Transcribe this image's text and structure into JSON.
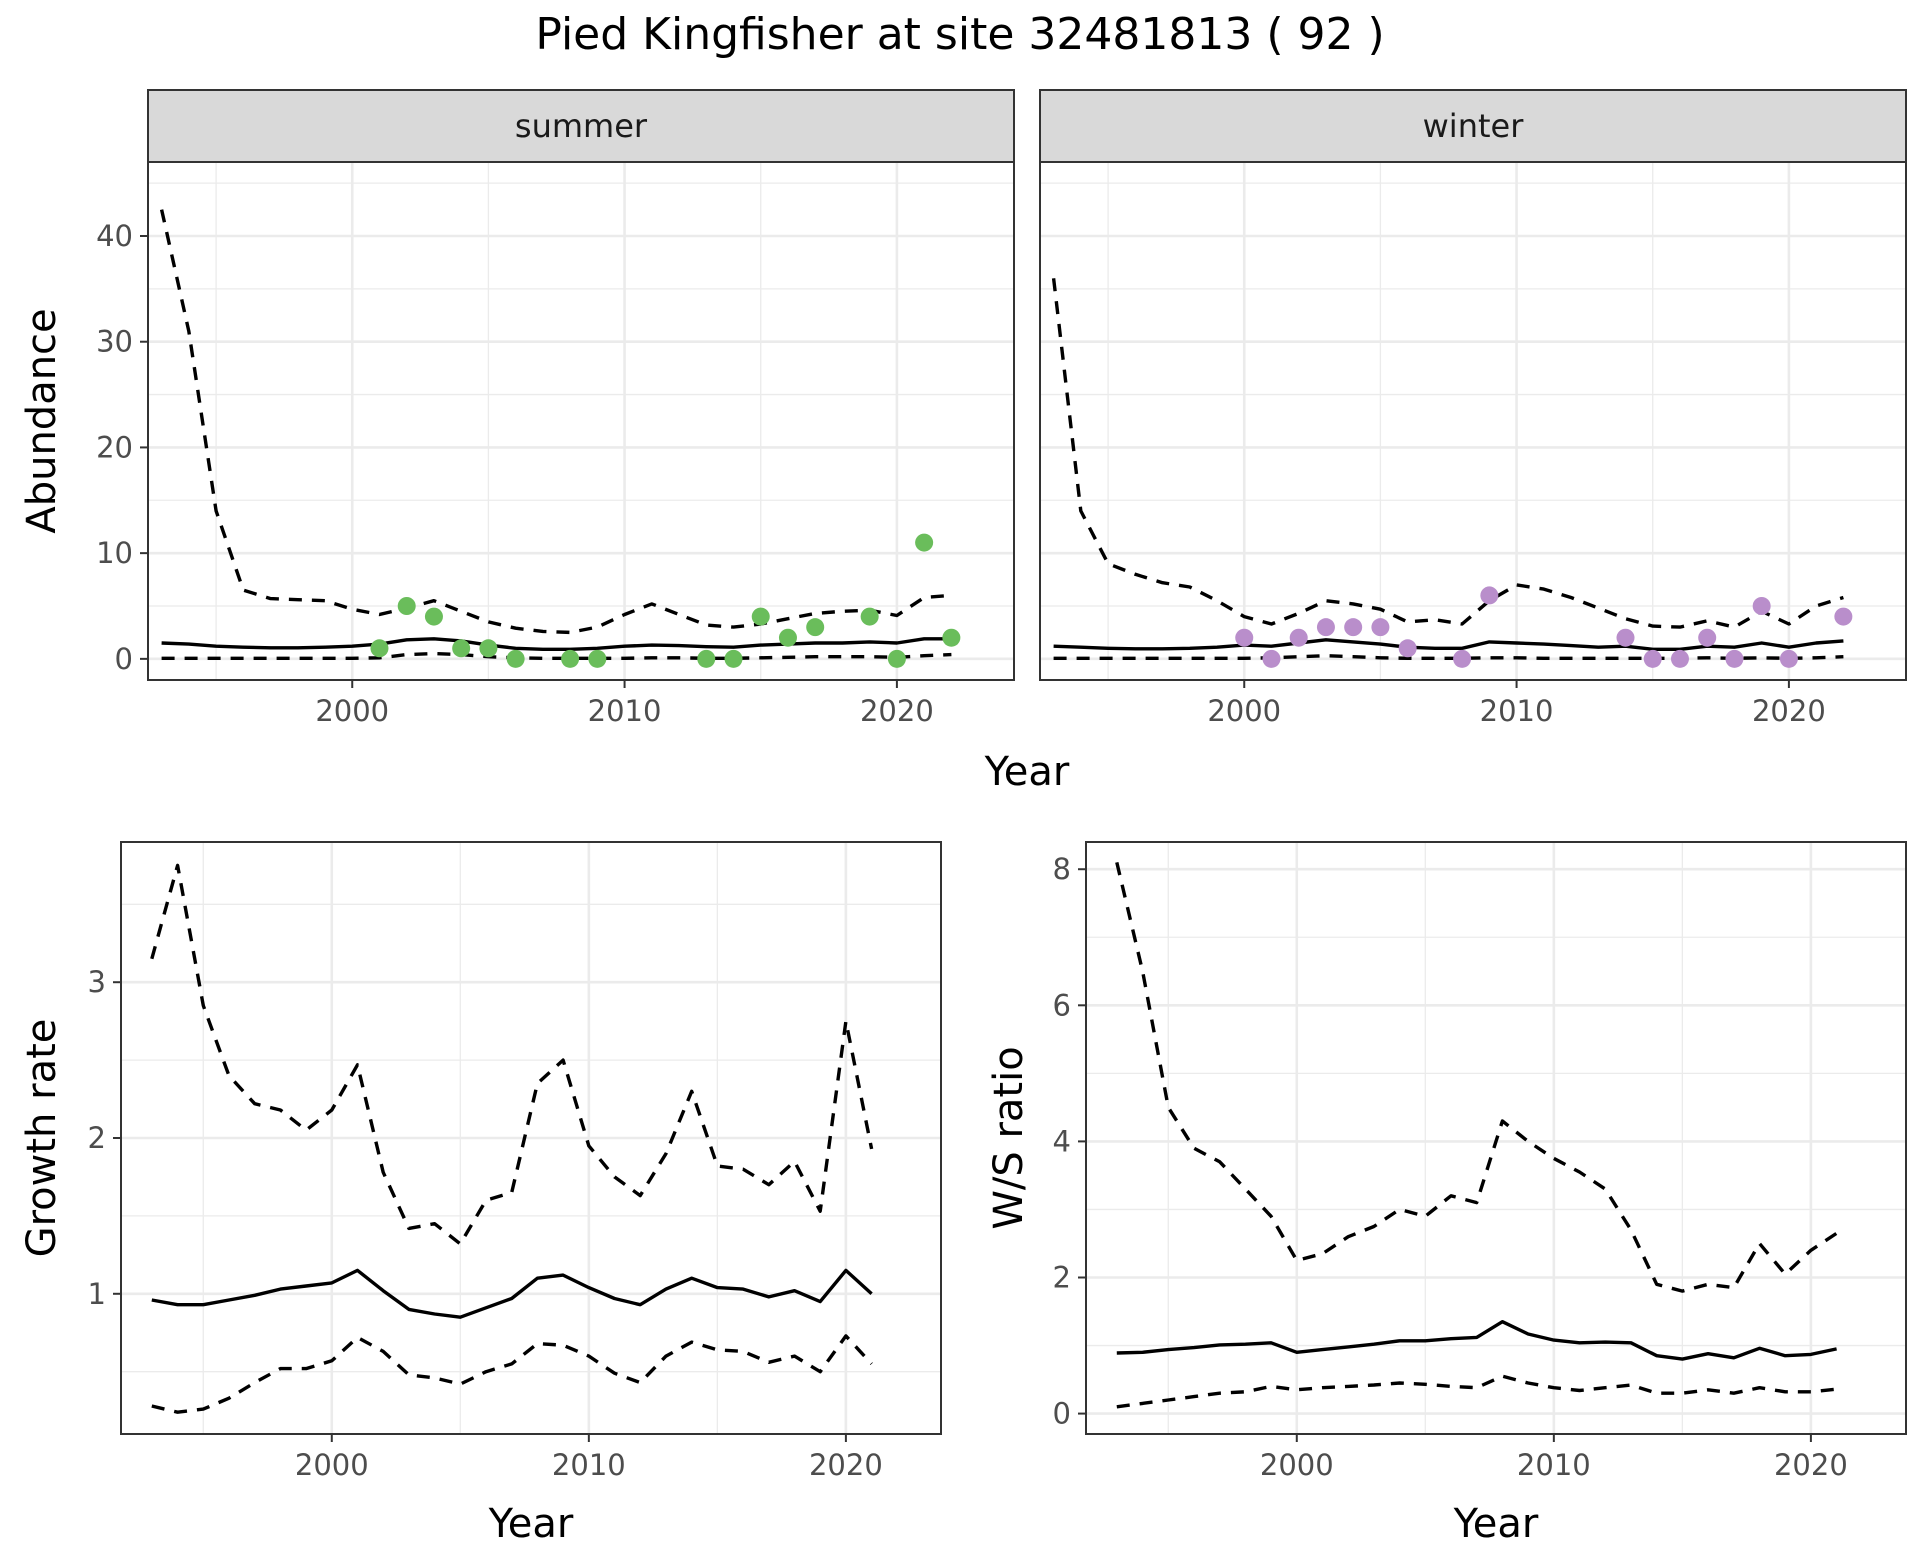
{
  "title": "Pied Kingfisher at site 32481813 ( 92 )",
  "colors": {
    "summer_points": "#6abd5b",
    "winter_points": "#b98ecb",
    "line": "#000000",
    "strip_fill": "#d9d9d9",
    "grid": "#ebebeb"
  },
  "chart_data": [
    {
      "id": "abundance-summer",
      "type": "scatter",
      "facet_label": "summer",
      "xlabel": "Year",
      "ylabel": "Abundance",
      "xlim": [
        1992.5,
        2024.3
      ],
      "ylim": [
        -2,
        47
      ],
      "x_ticks": [
        2000,
        2010,
        2020
      ],
      "y_ticks": [
        0,
        10,
        20,
        30,
        40
      ],
      "grid": true,
      "point_color": "#6abd5b",
      "points": {
        "x": [
          2001,
          2002,
          2003,
          2004,
          2005,
          2006,
          2008,
          2009,
          2013,
          2014,
          2015,
          2016,
          2017,
          2019,
          2020,
          2021,
          2022
        ],
        "y": [
          1,
          5,
          4,
          1,
          1,
          0,
          0,
          0,
          0,
          0,
          4,
          2,
          3,
          4,
          0,
          11,
          2
        ]
      },
      "series": [
        {
          "style": "solid",
          "x": [
            1993,
            1994,
            1995,
            1996,
            1997,
            1998,
            1999,
            2000,
            2001,
            2002,
            2003,
            2004,
            2005,
            2006,
            2007,
            2008,
            2009,
            2010,
            2011,
            2012,
            2013,
            2014,
            2015,
            2016,
            2017,
            2018,
            2019,
            2020,
            2021,
            2022
          ],
          "y": [
            1.5,
            1.4,
            1.2,
            1.1,
            1.05,
            1.05,
            1.1,
            1.2,
            1.4,
            1.8,
            1.9,
            1.7,
            1.3,
            1.0,
            0.9,
            0.9,
            1.0,
            1.2,
            1.3,
            1.25,
            1.15,
            1.1,
            1.3,
            1.4,
            1.5,
            1.5,
            1.6,
            1.5,
            1.9,
            1.9
          ]
        },
        {
          "style": "dashed",
          "x": [
            1993,
            1994,
            1995,
            1996,
            1997,
            1998,
            1999,
            2000,
            2001,
            2002,
            2003,
            2004,
            2005,
            2006,
            2007,
            2008,
            2009,
            2010,
            2011,
            2012,
            2013,
            2014,
            2015,
            2016,
            2017,
            2018,
            2019,
            2020,
            2021,
            2022
          ],
          "y": [
            42.5,
            31,
            14,
            6.5,
            5.7,
            5.6,
            5.5,
            4.7,
            4.2,
            4.8,
            5.5,
            4.5,
            3.5,
            2.9,
            2.6,
            2.5,
            3.0,
            4.2,
            5.2,
            4.2,
            3.2,
            3.0,
            3.3,
            3.8,
            4.3,
            4.5,
            4.6,
            4.1,
            5.8,
            6.0
          ]
        },
        {
          "style": "dashed",
          "x": [
            1993,
            1994,
            1995,
            1996,
            1997,
            1998,
            1999,
            2000,
            2001,
            2002,
            2003,
            2004,
            2005,
            2006,
            2007,
            2008,
            2009,
            2010,
            2011,
            2012,
            2013,
            2014,
            2015,
            2016,
            2017,
            2018,
            2019,
            2020,
            2021,
            2022
          ],
          "y": [
            0.05,
            0.05,
            0.05,
            0.05,
            0.05,
            0.05,
            0.05,
            0.05,
            0.1,
            0.4,
            0.5,
            0.4,
            0.2,
            0.1,
            0.05,
            0.05,
            0.05,
            0.05,
            0.1,
            0.1,
            0.05,
            0.05,
            0.1,
            0.15,
            0.2,
            0.2,
            0.2,
            0.15,
            0.3,
            0.4
          ]
        }
      ]
    },
    {
      "id": "abundance-winter",
      "type": "scatter",
      "facet_label": "winter",
      "xlabel": "Year",
      "ylabel": "Abundance",
      "xlim": [
        1992.5,
        2024.3
      ],
      "ylim": [
        -2,
        47
      ],
      "x_ticks": [
        2000,
        2010,
        2020
      ],
      "y_ticks": [
        0,
        10,
        20,
        30,
        40
      ],
      "grid": true,
      "point_color": "#b98ecb",
      "points": {
        "x": [
          2000,
          2001,
          2002,
          2003,
          2004,
          2005,
          2006,
          2008,
          2009,
          2014,
          2015,
          2016,
          2017,
          2018,
          2019,
          2020,
          2022
        ],
        "y": [
          2,
          0,
          2,
          3,
          3,
          3,
          1,
          0,
          6,
          2,
          0,
          0,
          2,
          0,
          5,
          0,
          4
        ]
      },
      "series": [
        {
          "style": "solid",
          "x": [
            1993,
            1994,
            1995,
            1996,
            1997,
            1998,
            1999,
            2000,
            2001,
            2002,
            2003,
            2004,
            2005,
            2006,
            2007,
            2008,
            2009,
            2010,
            2011,
            2012,
            2013,
            2014,
            2015,
            2016,
            2017,
            2018,
            2019,
            2020,
            2021,
            2022
          ],
          "y": [
            1.2,
            1.1,
            1.0,
            0.95,
            0.95,
            1.0,
            1.1,
            1.3,
            1.2,
            1.5,
            1.8,
            1.6,
            1.4,
            1.1,
            1.0,
            1.0,
            1.6,
            1.5,
            1.4,
            1.25,
            1.1,
            1.2,
            0.9,
            0.9,
            1.2,
            1.1,
            1.5,
            1.1,
            1.5,
            1.7
          ]
        },
        {
          "style": "dashed",
          "x": [
            1993,
            1994,
            1995,
            1996,
            1997,
            1998,
            1999,
            2000,
            2001,
            2002,
            2003,
            2004,
            2005,
            2006,
            2007,
            2008,
            2009,
            2010,
            2011,
            2012,
            2013,
            2014,
            2015,
            2016,
            2017,
            2018,
            2019,
            2020,
            2021,
            2022
          ],
          "y": [
            36,
            14,
            9,
            8,
            7.2,
            6.8,
            5.5,
            4.0,
            3.3,
            4.3,
            5.5,
            5.2,
            4.7,
            3.5,
            3.7,
            3.3,
            5.5,
            7.0,
            6.6,
            5.8,
            4.8,
            3.8,
            3.1,
            3.0,
            3.6,
            3.0,
            4.5,
            3.3,
            5.0,
            5.8
          ]
        },
        {
          "style": "dashed",
          "x": [
            1993,
            1994,
            1995,
            1996,
            1997,
            1998,
            1999,
            2000,
            2001,
            2002,
            2003,
            2004,
            2005,
            2006,
            2007,
            2008,
            2009,
            2010,
            2011,
            2012,
            2013,
            2014,
            2015,
            2016,
            2017,
            2018,
            2019,
            2020,
            2021,
            2022
          ],
          "y": [
            0.05,
            0.05,
            0.05,
            0.05,
            0.05,
            0.05,
            0.05,
            0.05,
            0.1,
            0.2,
            0.3,
            0.2,
            0.1,
            0.05,
            0.05,
            0.05,
            0.1,
            0.1,
            0.05,
            0.05,
            0.05,
            0.05,
            0.05,
            0.05,
            0.1,
            0.05,
            0.1,
            0.05,
            0.1,
            0.2
          ]
        }
      ]
    },
    {
      "id": "growth-rate",
      "type": "line",
      "xlabel": "Year",
      "ylabel": "Growth rate",
      "xlim": [
        1991.8,
        2023.7
      ],
      "ylim": [
        0.1,
        3.9
      ],
      "x_ticks": [
        2000,
        2010,
        2020
      ],
      "y_ticks": [
        1,
        2,
        3
      ],
      "grid": true,
      "series": [
        {
          "style": "solid",
          "x": [
            1993,
            1994,
            1995,
            1996,
            1997,
            1998,
            1999,
            2000,
            2001,
            2002,
            2003,
            2004,
            2005,
            2006,
            2007,
            2008,
            2009,
            2010,
            2011,
            2012,
            2013,
            2014,
            2015,
            2016,
            2017,
            2018,
            2019,
            2020,
            2021
          ],
          "y": [
            0.96,
            0.93,
            0.93,
            0.96,
            0.99,
            1.03,
            1.05,
            1.07,
            1.15,
            1.02,
            0.9,
            0.87,
            0.85,
            0.91,
            0.97,
            1.1,
            1.12,
            1.04,
            0.97,
            0.93,
            1.03,
            1.1,
            1.04,
            1.03,
            0.98,
            1.02,
            0.95,
            1.15,
            1.0
          ]
        },
        {
          "style": "dashed",
          "x": [
            1993,
            1994,
            1995,
            1996,
            1997,
            1998,
            1999,
            2000,
            2001,
            2002,
            2003,
            2004,
            2005,
            2006,
            2007,
            2008,
            2009,
            2010,
            2011,
            2012,
            2013,
            2014,
            2015,
            2016,
            2017,
            2018,
            2019,
            2020,
            2021
          ],
          "y": [
            3.15,
            3.75,
            2.85,
            2.4,
            2.22,
            2.18,
            2.05,
            2.18,
            2.47,
            1.78,
            1.42,
            1.45,
            1.32,
            1.6,
            1.65,
            2.35,
            2.5,
            1.95,
            1.75,
            1.63,
            1.9,
            2.3,
            1.82,
            1.8,
            1.7,
            1.85,
            1.53,
            2.75,
            1.93
          ]
        },
        {
          "style": "dashed",
          "x": [
            1993,
            1994,
            1995,
            1996,
            1997,
            1998,
            1999,
            2000,
            2001,
            2002,
            2003,
            2004,
            2005,
            2006,
            2007,
            2008,
            2009,
            2010,
            2011,
            2012,
            2013,
            2014,
            2015,
            2016,
            2017,
            2018,
            2019,
            2020,
            2021
          ],
          "y": [
            0.28,
            0.24,
            0.26,
            0.33,
            0.43,
            0.52,
            0.52,
            0.57,
            0.72,
            0.63,
            0.48,
            0.46,
            0.42,
            0.5,
            0.55,
            0.68,
            0.67,
            0.6,
            0.49,
            0.43,
            0.6,
            0.69,
            0.64,
            0.63,
            0.56,
            0.6,
            0.5,
            0.73,
            0.55
          ]
        }
      ]
    },
    {
      "id": "ws-ratio",
      "type": "line",
      "xlabel": "Year",
      "ylabel": "W/S ratio",
      "xlim": [
        1991.8,
        2023.7
      ],
      "ylim": [
        -0.3,
        8.4
      ],
      "x_ticks": [
        2000,
        2010,
        2020
      ],
      "y_ticks": [
        0,
        2,
        4,
        6,
        8
      ],
      "grid": true,
      "series": [
        {
          "style": "solid",
          "x": [
            1993,
            1994,
            1995,
            1996,
            1997,
            1998,
            1999,
            2000,
            2001,
            2002,
            2003,
            2004,
            2005,
            2006,
            2007,
            2008,
            2009,
            2010,
            2011,
            2012,
            2013,
            2014,
            2015,
            2016,
            2017,
            2018,
            2019,
            2020,
            2021
          ],
          "y": [
            0.89,
            0.9,
            0.94,
            0.97,
            1.01,
            1.02,
            1.04,
            0.9,
            0.94,
            0.98,
            1.02,
            1.07,
            1.07,
            1.1,
            1.12,
            1.35,
            1.17,
            1.08,
            1.04,
            1.05,
            1.04,
            0.85,
            0.8,
            0.88,
            0.82,
            0.96,
            0.85,
            0.87,
            0.95
          ]
        },
        {
          "style": "dashed",
          "x": [
            1993,
            1994,
            1995,
            1996,
            1997,
            1998,
            1999,
            2000,
            2001,
            2002,
            2003,
            2004,
            2005,
            2006,
            2007,
            2008,
            2009,
            2010,
            2011,
            2012,
            2013,
            2014,
            2015,
            2016,
            2017,
            2018,
            2019,
            2020,
            2021
          ],
          "y": [
            8.1,
            6.5,
            4.5,
            3.9,
            3.7,
            3.3,
            2.9,
            2.25,
            2.35,
            2.6,
            2.75,
            3.0,
            2.9,
            3.2,
            3.1,
            4.3,
            4.0,
            3.75,
            3.55,
            3.3,
            2.7,
            1.9,
            1.8,
            1.9,
            1.85,
            2.5,
            2.05,
            2.4,
            2.65
          ]
        },
        {
          "style": "dashed",
          "x": [
            1993,
            1994,
            1995,
            1996,
            1997,
            1998,
            1999,
            2000,
            2001,
            2002,
            2003,
            2004,
            2005,
            2006,
            2007,
            2008,
            2009,
            2010,
            2011,
            2012,
            2013,
            2014,
            2015,
            2016,
            2017,
            2018,
            2019,
            2020,
            2021
          ],
          "y": [
            0.1,
            0.15,
            0.2,
            0.25,
            0.3,
            0.32,
            0.4,
            0.35,
            0.38,
            0.4,
            0.42,
            0.45,
            0.43,
            0.4,
            0.38,
            0.55,
            0.45,
            0.38,
            0.34,
            0.38,
            0.42,
            0.3,
            0.3,
            0.35,
            0.3,
            0.38,
            0.32,
            0.32,
            0.36
          ]
        }
      ]
    }
  ]
}
